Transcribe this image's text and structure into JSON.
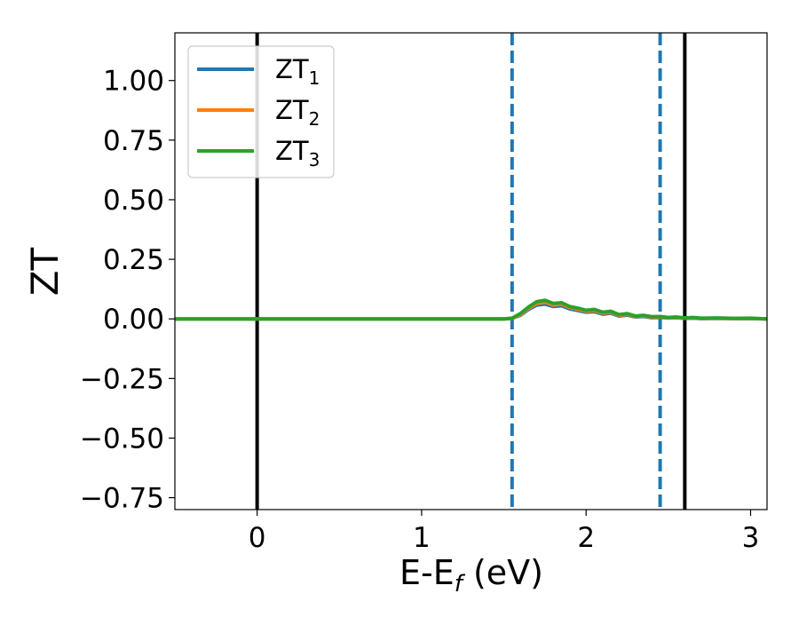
{
  "chart_data": {
    "type": "line",
    "title": "",
    "xlabel": "E-E",
    "xlabel_sub": "f",
    "xlabel_unit": " (eV)",
    "ylabel": "ZT",
    "xlim": [
      -0.5,
      3.1
    ],
    "ylim": [
      -0.8,
      1.2
    ],
    "xticks": [
      0,
      1,
      2,
      3
    ],
    "xtick_labels": [
      "0",
      "1",
      "2",
      "3"
    ],
    "yticks": [
      -0.75,
      -0.5,
      -0.25,
      0.0,
      0.25,
      0.5,
      0.75,
      1.0
    ],
    "ytick_labels": [
      "−0.75",
      "−0.50",
      "−0.25",
      "0.00",
      "0.25",
      "0.50",
      "0.75",
      "1.00"
    ],
    "grid": false,
    "legend_position": "top-left",
    "vlines": [
      {
        "x": 0.0,
        "style": "solid",
        "color": "#000000"
      },
      {
        "x": 2.6,
        "style": "solid",
        "color": "#000000"
      },
      {
        "x": 1.55,
        "style": "dashed",
        "color": "#1f77b4"
      },
      {
        "x": 2.45,
        "style": "dashed",
        "color": "#1f77b4"
      }
    ],
    "series": [
      {
        "name": "ZT",
        "sub": "1",
        "color": "#1f77b4",
        "x": [
          -0.5,
          0.0,
          0.5,
          1.0,
          1.5,
          1.55,
          1.6,
          1.65,
          1.7,
          1.75,
          1.8,
          1.85,
          1.9,
          1.95,
          2.0,
          2.05,
          2.1,
          2.15,
          2.2,
          2.25,
          2.3,
          2.35,
          2.4,
          2.45,
          2.5,
          2.55,
          2.6,
          2.65,
          2.7,
          2.8,
          2.9,
          3.0,
          3.1
        ],
        "y": [
          0,
          0,
          0,
          0,
          0,
          0.002,
          0.015,
          0.04,
          0.058,
          0.062,
          0.052,
          0.055,
          0.042,
          0.035,
          0.028,
          0.03,
          0.02,
          0.024,
          0.012,
          0.016,
          0.008,
          0.01,
          0.005,
          0.006,
          0.004,
          0.005,
          0.002,
          0.003,
          0.001,
          0.002,
          0.001,
          0.001,
          0
        ]
      },
      {
        "name": "ZT",
        "sub": "2",
        "color": "#ff7f0e",
        "x": [
          -0.5,
          0.0,
          0.5,
          1.0,
          1.5,
          1.55,
          1.6,
          1.65,
          1.7,
          1.75,
          1.8,
          1.85,
          1.9,
          1.95,
          2.0,
          2.05,
          2.1,
          2.15,
          2.2,
          2.25,
          2.3,
          2.35,
          2.4,
          2.45,
          2.5,
          2.55,
          2.6,
          2.65,
          2.7,
          2.8,
          2.9,
          3.0,
          3.1
        ],
        "y": [
          0,
          0,
          0,
          0,
          0,
          0.002,
          0.018,
          0.045,
          0.065,
          0.07,
          0.058,
          0.062,
          0.048,
          0.04,
          0.032,
          0.035,
          0.024,
          0.028,
          0.015,
          0.019,
          0.01,
          0.012,
          0.007,
          0.008,
          0.005,
          0.006,
          0.003,
          0.004,
          0.002,
          0.003,
          0.001,
          0.002,
          0
        ]
      },
      {
        "name": "ZT",
        "sub": "3",
        "color": "#2ca02c",
        "x": [
          -0.5,
          0.0,
          0.5,
          1.0,
          1.5,
          1.55,
          1.6,
          1.65,
          1.7,
          1.75,
          1.8,
          1.85,
          1.9,
          1.95,
          2.0,
          2.05,
          2.1,
          2.15,
          2.2,
          2.25,
          2.3,
          2.35,
          2.4,
          2.45,
          2.5,
          2.55,
          2.6,
          2.65,
          2.7,
          2.8,
          2.9,
          3.0,
          3.1
        ],
        "y": [
          0,
          0,
          0,
          0,
          0,
          0.003,
          0.022,
          0.05,
          0.072,
          0.078,
          0.065,
          0.068,
          0.052,
          0.045,
          0.036,
          0.04,
          0.028,
          0.032,
          0.018,
          0.022,
          0.012,
          0.015,
          0.009,
          0.01,
          0.006,
          0.008,
          0.004,
          0.006,
          0.003,
          0.004,
          0.002,
          0.003,
          0
        ]
      }
    ]
  }
}
